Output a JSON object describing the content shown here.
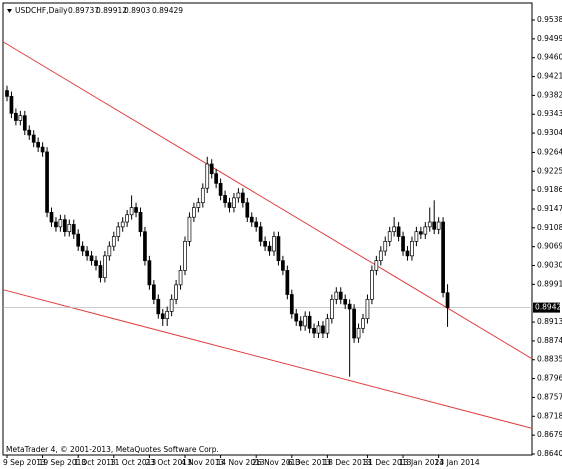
{
  "chart_data": {
    "type": "candlestick",
    "title": "USDCHF,Daily",
    "footer": "MetaTrader 4, © 2001-2013, MetaQuotes Software Corp.",
    "categories": [
      "9 Sep 2013",
      null,
      null,
      null,
      null,
      null,
      null,
      null,
      "19 Sep 2013",
      null,
      null,
      null,
      null,
      null,
      null,
      null,
      "1 Oct 2013",
      null,
      null,
      null,
      null,
      null,
      null,
      null,
      "11 Oct 2013",
      null,
      null,
      null,
      null,
      null,
      null,
      null,
      "23 Oct 2013",
      null,
      null,
      null,
      null,
      null,
      null,
      null,
      "4 Nov 2013",
      null,
      null,
      null,
      null,
      null,
      null,
      null,
      "14 Nov 2013",
      null,
      null,
      null,
      null,
      null,
      null,
      null,
      "26 Nov 2013",
      null,
      null,
      null,
      null,
      null,
      null,
      null,
      "6 Dec 2013",
      null,
      null,
      null,
      null,
      null,
      null,
      null,
      "18 Dec 2013",
      null,
      null,
      null,
      null,
      null,
      null,
      null,
      null,
      "31 Dec 2013",
      null,
      null,
      null,
      null,
      null,
      null,
      null,
      "13 Jan 2014",
      null,
      null,
      null,
      null,
      null,
      null,
      null,
      "23 Jan 2014",
      null,
      null
    ],
    "candles": [
      [
        0.9392,
        0.9402,
        0.937,
        0.938
      ],
      [
        0.938,
        0.939,
        0.9335,
        0.9345
      ],
      [
        0.9345,
        0.9355,
        0.932,
        0.933
      ],
      [
        0.933,
        0.935,
        0.932,
        0.934
      ],
      [
        0.934,
        0.935,
        0.93,
        0.931
      ],
      [
        0.931,
        0.932,
        0.929,
        0.93
      ],
      [
        0.93,
        0.931,
        0.9275,
        0.9285
      ],
      [
        0.9285,
        0.9295,
        0.9265,
        0.9275
      ],
      [
        0.9275,
        0.9285,
        0.9255,
        0.9265
      ],
      [
        0.9265,
        0.9275,
        0.913,
        0.914
      ],
      [
        0.914,
        0.915,
        0.911,
        0.912
      ],
      [
        0.912,
        0.913,
        0.91,
        0.911
      ],
      [
        0.911,
        0.9135,
        0.91,
        0.9125
      ],
      [
        0.9125,
        0.9135,
        0.909,
        0.91
      ],
      [
        0.91,
        0.9125,
        0.909,
        0.9115
      ],
      [
        0.9115,
        0.9125,
        0.9085,
        0.9095
      ],
      [
        0.9095,
        0.9105,
        0.906,
        0.907
      ],
      [
        0.907,
        0.908,
        0.905,
        0.906
      ],
      [
        0.906,
        0.907,
        0.904,
        0.905
      ],
      [
        0.905,
        0.906,
        0.903,
        0.904
      ],
      [
        0.904,
        0.905,
        0.902,
        0.903
      ],
      [
        0.903,
        0.904,
        0.8995,
        0.9005
      ],
      [
        0.9005,
        0.906,
        0.8995,
        0.905
      ],
      [
        0.905,
        0.908,
        0.904,
        0.907
      ],
      [
        0.907,
        0.91,
        0.906,
        0.909
      ],
      [
        0.909,
        0.912,
        0.908,
        0.911
      ],
      [
        0.911,
        0.913,
        0.91,
        0.912
      ],
      [
        0.912,
        0.9145,
        0.911,
        0.9135
      ],
      [
        0.9135,
        0.9175,
        0.9125,
        0.915
      ],
      [
        0.915,
        0.916,
        0.913,
        0.914
      ],
      [
        0.914,
        0.915,
        0.909,
        0.91
      ],
      [
        0.91,
        0.911,
        0.903,
        0.904
      ],
      [
        0.904,
        0.905,
        0.898,
        0.899
      ],
      [
        0.899,
        0.9,
        0.895,
        0.896
      ],
      [
        0.896,
        0.897,
        0.892,
        0.893
      ],
      [
        0.893,
        0.894,
        0.8905,
        0.892
      ],
      [
        0.892,
        0.8945,
        0.8905,
        0.8935
      ],
      [
        0.8935,
        0.897,
        0.8925,
        0.896
      ],
      [
        0.896,
        0.9,
        0.895,
        0.899
      ],
      [
        0.899,
        0.903,
        0.898,
        0.902
      ],
      [
        0.902,
        0.909,
        0.901,
        0.908
      ],
      [
        0.908,
        0.914,
        0.907,
        0.913
      ],
      [
        0.913,
        0.916,
        0.912,
        0.915
      ],
      [
        0.915,
        0.917,
        0.914,
        0.916
      ],
      [
        0.916,
        0.92,
        0.915,
        0.919
      ],
      [
        0.919,
        0.9255,
        0.918,
        0.924
      ],
      [
        0.924,
        0.925,
        0.921,
        0.922
      ],
      [
        0.922,
        0.923,
        0.919,
        0.92
      ],
      [
        0.92,
        0.921,
        0.9165,
        0.9175
      ],
      [
        0.9175,
        0.9185,
        0.915,
        0.916
      ],
      [
        0.916,
        0.917,
        0.914,
        0.915
      ],
      [
        0.915,
        0.918,
        0.914,
        0.917
      ],
      [
        0.917,
        0.919,
        0.916,
        0.918
      ],
      [
        0.918,
        0.919,
        0.915,
        0.916
      ],
      [
        0.916,
        0.917,
        0.912,
        0.913
      ],
      [
        0.913,
        0.914,
        0.911,
        0.912
      ],
      [
        0.912,
        0.913,
        0.91,
        0.911
      ],
      [
        0.911,
        0.912,
        0.907,
        0.908
      ],
      [
        0.908,
        0.909,
        0.906,
        0.907
      ],
      [
        0.907,
        0.908,
        0.905,
        0.906
      ],
      [
        0.906,
        0.91,
        0.905,
        0.909
      ],
      [
        0.909,
        0.91,
        0.903,
        0.904
      ],
      [
        0.904,
        0.905,
        0.901,
        0.902
      ],
      [
        0.902,
        0.903,
        0.896,
        0.897
      ],
      [
        0.897,
        0.898,
        0.892,
        0.893
      ],
      [
        0.893,
        0.894,
        0.8905,
        0.8915
      ],
      [
        0.8915,
        0.8925,
        0.8895,
        0.8905
      ],
      [
        0.8905,
        0.8935,
        0.8895,
        0.8925
      ],
      [
        0.8925,
        0.8935,
        0.889,
        0.89
      ],
      [
        0.89,
        0.891,
        0.888,
        0.889
      ],
      [
        0.889,
        0.8915,
        0.888,
        0.8905
      ],
      [
        0.8905,
        0.8915,
        0.888,
        0.889
      ],
      [
        0.889,
        0.893,
        0.888,
        0.892
      ],
      [
        0.892,
        0.897,
        0.891,
        0.896
      ],
      [
        0.896,
        0.8985,
        0.895,
        0.8975
      ],
      [
        0.8975,
        0.8985,
        0.895,
        0.896
      ],
      [
        0.896,
        0.897,
        0.894,
        0.895
      ],
      [
        0.895,
        0.896,
        0.88,
        0.894
      ],
      [
        0.894,
        0.895,
        0.887,
        0.888
      ],
      [
        0.888,
        0.891,
        0.887,
        0.89
      ],
      [
        0.89,
        0.893,
        0.889,
        0.892
      ],
      [
        0.892,
        0.897,
        0.891,
        0.896
      ],
      [
        0.896,
        0.903,
        0.895,
        0.902
      ],
      [
        0.902,
        0.905,
        0.901,
        0.904
      ],
      [
        0.904,
        0.907,
        0.903,
        0.906
      ],
      [
        0.906,
        0.909,
        0.905,
        0.908
      ],
      [
        0.908,
        0.911,
        0.907,
        0.91
      ],
      [
        0.91,
        0.913,
        0.909,
        0.911
      ],
      [
        0.911,
        0.912,
        0.908,
        0.909
      ],
      [
        0.909,
        0.91,
        0.905,
        0.906
      ],
      [
        0.906,
        0.907,
        0.904,
        0.905
      ],
      [
        0.905,
        0.909,
        0.904,
        0.908
      ],
      [
        0.908,
        0.911,
        0.907,
        0.91
      ],
      [
        0.91,
        0.911,
        0.9085,
        0.9095
      ],
      [
        0.9095,
        0.912,
        0.9085,
        0.911
      ],
      [
        0.911,
        0.915,
        0.91,
        0.912
      ],
      [
        0.912,
        0.9165,
        0.9095,
        0.9105
      ],
      [
        0.9105,
        0.913,
        0.9095,
        0.912
      ],
      [
        0.912,
        0.913,
        0.8964,
        0.8974
      ],
      [
        0.89737,
        0.89912,
        0.8903,
        0.89429
      ]
    ],
    "up_color": "#ffffff",
    "down_color": "#000000",
    "outline_color": "#000000",
    "trendlines": [
      {
        "color": "#e04040",
        "start": [
          -0.9,
          0.9493
        ],
        "end": [
          118,
          0.8837
        ]
      },
      {
        "color": "#e04040",
        "start": [
          -0.9,
          0.898
        ],
        "end": [
          118,
          0.8693
        ]
      }
    ],
    "ylim": [
      0.86379,
      0.95732
    ],
    "yticks": [
      {
        "value": 0.9538,
        "label": "0.95380"
      },
      {
        "value": 0.9499,
        "label": "0.94990"
      },
      {
        "value": 0.946,
        "label": "0.94600"
      },
      {
        "value": 0.9421,
        "label": "0.94210"
      },
      {
        "value": 0.9382,
        "label": "0.93820"
      },
      {
        "value": 0.9343,
        "label": "0.93430"
      },
      {
        "value": 0.9304,
        "label": "0.93040"
      },
      {
        "value": 0.9264,
        "label": "0.92640"
      },
      {
        "value": 0.9225,
        "label": "0.92250"
      },
      {
        "value": 0.9186,
        "label": "0.91860"
      },
      {
        "value": 0.9147,
        "label": "0.91470"
      },
      {
        "value": 0.9108,
        "label": "0.91080"
      },
      {
        "value": 0.9069,
        "label": "0.90690"
      },
      {
        "value": 0.903,
        "label": "0.90300"
      },
      {
        "value": 0.8991,
        "label": "0.89910"
      },
      {
        "value": 0.8913,
        "label": "0.89130"
      },
      {
        "value": 0.8874,
        "label": "0.88740"
      },
      {
        "value": 0.8835,
        "label": "0.88350"
      },
      {
        "value": 0.8796,
        "label": "0.87960"
      },
      {
        "value": 0.8757,
        "label": "0.87570"
      },
      {
        "value": 0.8718,
        "label": "0.87180"
      },
      {
        "value": 0.8679,
        "label": "0.86790"
      },
      {
        "value": 0.864,
        "label": "0.86400"
      }
    ]
  }
}
